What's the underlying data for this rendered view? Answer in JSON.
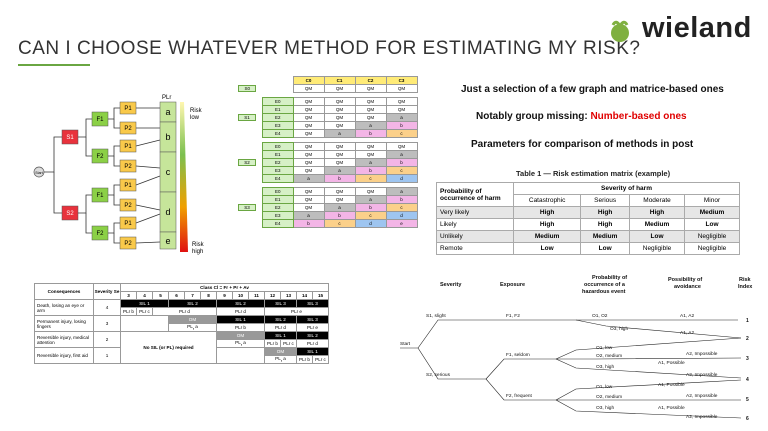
{
  "slide": {
    "title": "CAN I CHOOSE WHATEVER METHOD FOR ESTIMATING MY RISK?",
    "logo_text": "wieland",
    "colors": {
      "accent": "#6aa642",
      "logo_green": "#7fb03f",
      "highlight_red": "#e00000"
    }
  },
  "text_block": {
    "line1": "Just a selection of a few graph and matrice-based ones",
    "line2_prefix": "Notably group missing: ",
    "line2_highlight": "Number-based ones",
    "line3": "Parameters for comparison of methods in post"
  },
  "risk_graph": {
    "start": "Start",
    "s_nodes": [
      "S1",
      "S2"
    ],
    "f_nodes": [
      "F1",
      "F2",
      "F1",
      "F2"
    ],
    "p_nodes": [
      "P1",
      "P2",
      "P1",
      "P2",
      "P1",
      "P2",
      "P1",
      "P2"
    ],
    "levels": [
      "a",
      "b",
      "c",
      "d",
      "e"
    ],
    "pl_label": "PLr",
    "risk_low": "Risk\nlow",
    "risk_high": "Risk\nhigh"
  },
  "qm_matrix": {
    "columns": [
      "C0",
      "C1",
      "C2",
      "C3"
    ],
    "s_labels": [
      "S0",
      "S1",
      "S2",
      "S3"
    ],
    "groups": [
      {
        "rows": [
          {
            "label": "",
            "cells": [
              "QM",
              "QM",
              "QM",
              "QM"
            ]
          }
        ]
      },
      {
        "rows": [
          {
            "label": "E0",
            "cells": [
              "QM",
              "QM",
              "QM",
              "QM"
            ]
          },
          {
            "label": "E1",
            "cells": [
              "QM",
              "QM",
              "QM",
              "QM"
            ]
          },
          {
            "label": "E2",
            "cells": [
              "QM",
              "QM",
              "QM",
              "a"
            ]
          },
          {
            "label": "E3",
            "cells": [
              "QM",
              "QM",
              "a",
              "b"
            ]
          },
          {
            "label": "E4",
            "cells": [
              "QM",
              "a",
              "b",
              "c"
            ]
          }
        ]
      },
      {
        "rows": [
          {
            "label": "E0",
            "cells": [
              "QM",
              "QM",
              "QM",
              "QM"
            ]
          },
          {
            "label": "E1",
            "cells": [
              "QM",
              "QM",
              "QM",
              "a"
            ]
          },
          {
            "label": "E2",
            "cells": [
              "QM",
              "QM",
              "a",
              "b"
            ]
          },
          {
            "label": "E3",
            "cells": [
              "QM",
              "a",
              "b",
              "c"
            ]
          },
          {
            "label": "E4",
            "cells": [
              "a",
              "b",
              "c",
              "d"
            ]
          }
        ]
      },
      {
        "rows": [
          {
            "label": "E0",
            "cells": [
              "QM",
              "QM",
              "QM",
              "a"
            ]
          },
          {
            "label": "E1",
            "cells": [
              "QM",
              "QM",
              "a",
              "b"
            ]
          },
          {
            "label": "E2",
            "cells": [
              "QM",
              "a",
              "b",
              "c"
            ]
          },
          {
            "label": "E3",
            "cells": [
              "a",
              "b",
              "c",
              "d"
            ]
          },
          {
            "label": "E4",
            "cells": [
              "b",
              "c",
              "d",
              "e"
            ]
          }
        ]
      }
    ]
  },
  "risk_table": {
    "caption": "Table 1 — Risk estimation matrix (example)",
    "corner": "Probability of occurrence of harm",
    "group_header": "Severity of harm",
    "columns": [
      "Catastrophic",
      "Serious",
      "Moderate",
      "Minor"
    ],
    "rows": [
      {
        "label": "Very likely",
        "cells": [
          "High",
          "High",
          "High",
          "Medium"
        ]
      },
      {
        "label": "Likely",
        "cells": [
          "High",
          "High",
          "Medium",
          "Low"
        ]
      },
      {
        "label": "Unlikely",
        "cells": [
          "Medium",
          "Medium",
          "Low",
          "Negligible"
        ]
      },
      {
        "label": "Remote",
        "cells": [
          "Low",
          "Low",
          "Negligible",
          "Negligible"
        ]
      }
    ]
  },
  "sil_table": {
    "h_consequences": "Consequences",
    "h_severity": "Severity Se",
    "h_class": "Class  Cl = Fr + Pr + Av",
    "class_numbers": [
      "3",
      "4",
      "5",
      "6",
      "7",
      "8",
      "9",
      "10",
      "11",
      "12",
      "13",
      "14",
      "15"
    ],
    "rows": [
      {
        "consequence": "Death, losing an eye or arm",
        "severity": "4"
      },
      {
        "consequence": "Permanent injury, losing fingers",
        "severity": "3"
      },
      {
        "consequence": "Reversible injury, medical attention",
        "severity": "2"
      },
      {
        "consequence": "Reversible injury, first aid",
        "severity": "1"
      }
    ],
    "no_sil_text": "No SIL (or PL) required",
    "sil1": "SIL 1",
    "sil2": "SIL 2",
    "sil3": "SIL 3",
    "om": "OM",
    "pl_b": "PLr b",
    "pl_c": "PLr c",
    "pl_d": "PLr d",
    "pl_e": "PLr e"
  },
  "risk_tree": {
    "headers": {
      "severity": "Severity",
      "exposure": "Exposure",
      "probability": "Probability of occurrence of a hazardous event",
      "avoidance": "Possibility of avoidance",
      "index": "Risk Index"
    },
    "start": "Start",
    "s1": "S1, slight",
    "s2": "S2, serious",
    "f12": "F1, F2",
    "f1": "F1, seldom",
    "f2": "F2, frequent",
    "o12": "O1, O2",
    "o1": "O1, low",
    "o2": "O2, medium",
    "o3": "O3, high",
    "a12": "A1, A2",
    "a1": "A1, Possible",
    "a2": "A2, Impossible",
    "indices": [
      "1",
      "2",
      "3",
      "4",
      "5",
      "6"
    ]
  }
}
